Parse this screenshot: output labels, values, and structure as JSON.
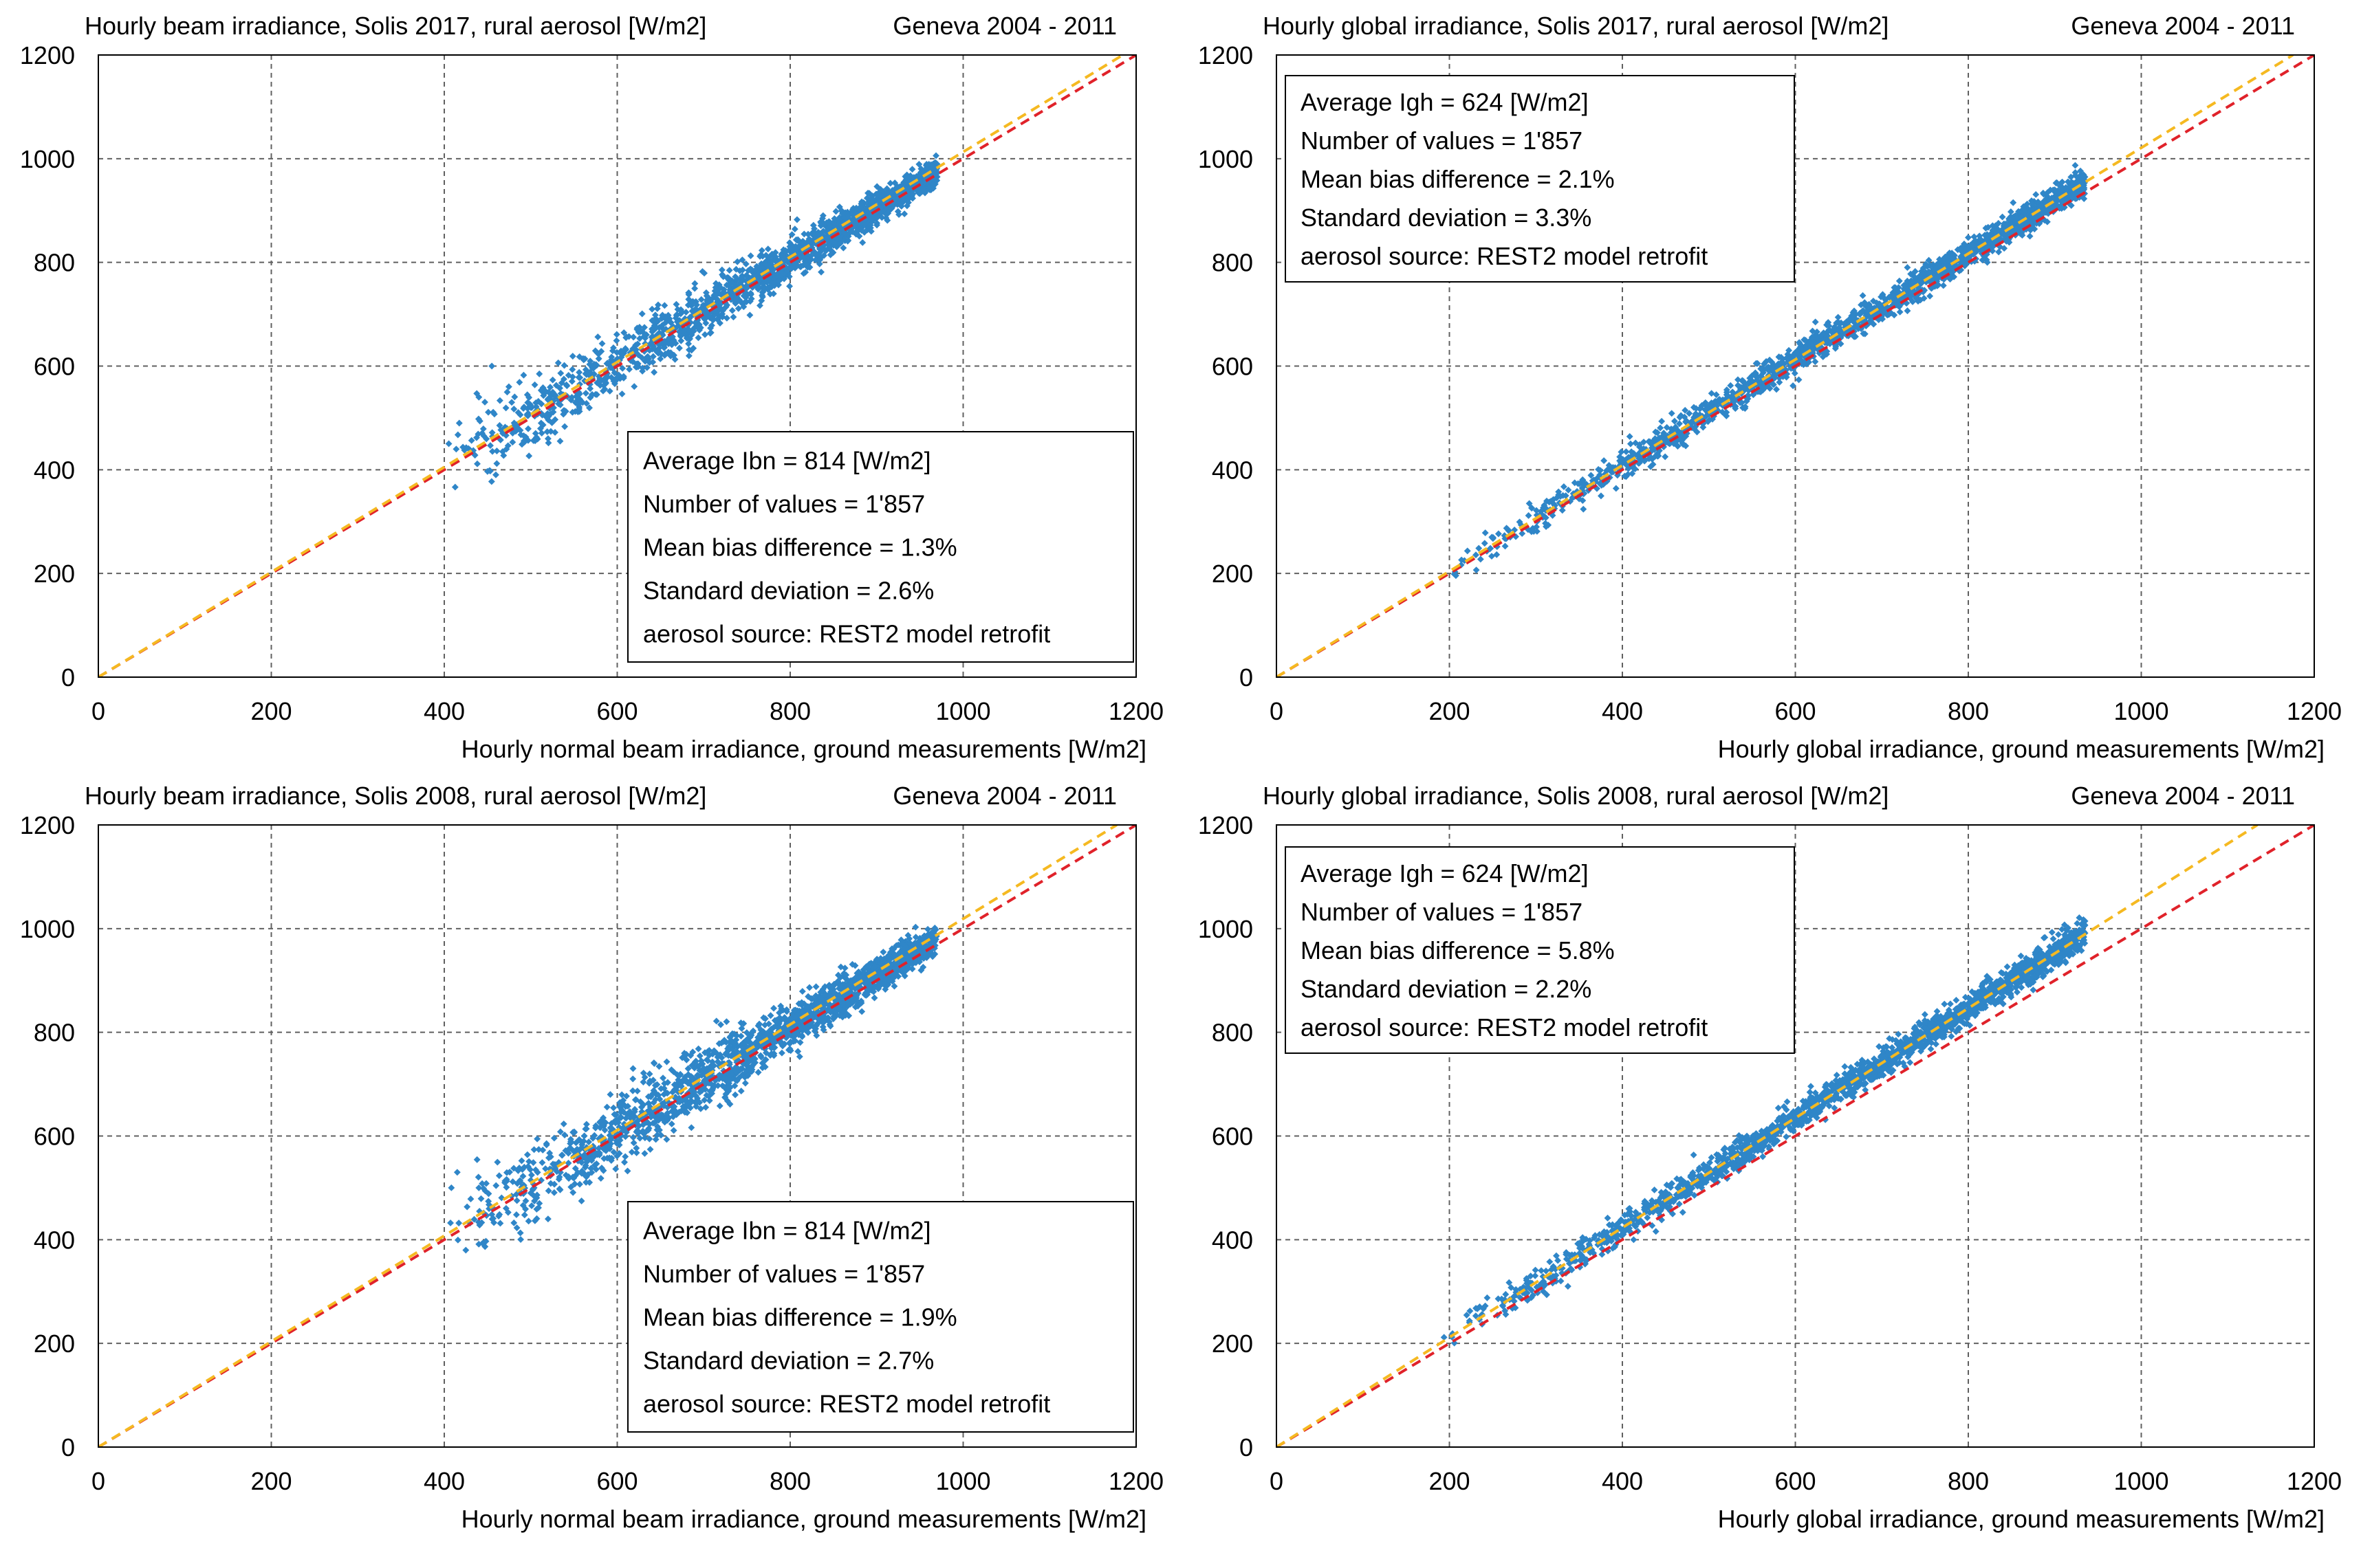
{
  "chart_data": [
    {
      "type": "scatter",
      "title": "Hourly beam irradiance, Solis 2017,  rural aerosol [W/m2]",
      "subtitle": "Geneva 2004 - 2011",
      "xlabel": "Hourly normal beam irradiance,   ground measurements [W/m2]",
      "ylabel": "",
      "xlim": [
        0,
        1200
      ],
      "ylim": [
        0,
        1200
      ],
      "xticks": [
        "0",
        "200",
        "400",
        "600",
        "800",
        "1000",
        "1200"
      ],
      "yticks": [
        "0",
        "200",
        "400",
        "600",
        "800",
        "1000",
        "1200"
      ],
      "grid": true,
      "legend_position": "bottom-right",
      "stats_lines": [
        "Average Ibn = 814 [W/m2]",
        "Number of values = 1'857",
        "Mean bias difference = 1.3%",
        "Standard deviation = 2.6%",
        "aerosol source: REST2 model retrofit"
      ],
      "reference_lines": [
        {
          "slope": 1.0,
          "color": "#e0222a"
        },
        {
          "slope": 1.013,
          "color": "#f5b921"
        }
      ],
      "cloud": {
        "x_start": 400,
        "x_end": 970,
        "slope": 1.0,
        "bias": 5,
        "spread_low": 40,
        "spread_high": 12
      },
      "series": [
        {
          "color": "#2f86c8",
          "x": [
            440,
            455,
            478,
            500,
            512,
            520
          ],
          "y": [
            540,
            600,
            530,
            520,
            490,
            460
          ]
        }
      ]
    },
    {
      "type": "scatter",
      "title": "Hourly global irradiance, Solis 2017,  rural aerosol [W/m2]",
      "subtitle": "Geneva 2004 - 2011",
      "xlabel": "Hourly global irradiance,   ground measurements [W/m2]",
      "ylabel": "",
      "xlim": [
        0,
        1200
      ],
      "ylim": [
        0,
        1200
      ],
      "xticks": [
        "0",
        "200",
        "400",
        "600",
        "800",
        "1000",
        "1200"
      ],
      "yticks": [
        "0",
        "200",
        "400",
        "600",
        "800",
        "1000",
        "1200"
      ],
      "grid": true,
      "legend_position": "top-left",
      "stats_lines": [
        "Average Igh = 624 [W/m2]",
        "Number of values = 1'857",
        "Mean bias difference = 2.1%",
        "Standard deviation = 3.3%",
        "aerosol source: REST2 model retrofit"
      ],
      "reference_lines": [
        {
          "slope": 1.0,
          "color": "#e0222a"
        },
        {
          "slope": 1.021,
          "color": "#f5b921"
        }
      ],
      "cloud": {
        "x_start": 185,
        "x_end": 935,
        "slope": 1.021,
        "bias": 0,
        "spread_low": 14,
        "spread_high": 14
      },
      "series": [
        {
          "color": "#2f86c8",
          "x": [],
          "y": []
        }
      ]
    },
    {
      "type": "scatter",
      "title": "Hourly beam irradiance, Solis 2008,  rural aerosol [W/m2]",
      "subtitle": "Geneva 2004 - 2011",
      "xlabel": "Hourly normal beam irradiance,   ground measurements [W/m2]",
      "ylabel": "",
      "xlim": [
        0,
        1200
      ],
      "ylim": [
        0,
        1200
      ],
      "xticks": [
        "0",
        "200",
        "400",
        "600",
        "800",
        "1000",
        "1200"
      ],
      "yticks": [
        "0",
        "200",
        "400",
        "600",
        "800",
        "1000",
        "1200"
      ],
      "grid": true,
      "legend_position": "bottom-right",
      "stats_lines": [
        "Average Ibn = 814 [W/m2]",
        "Number of values = 1'857",
        "Mean bias difference = 1.9%",
        "Standard deviation = 2.7%",
        "aerosol source: REST2 model retrofit"
      ],
      "reference_lines": [
        {
          "slope": 1.0,
          "color": "#e0222a"
        },
        {
          "slope": 1.019,
          "color": "#f5b921"
        }
      ],
      "cloud": {
        "x_start": 400,
        "x_end": 970,
        "slope": 1.0,
        "bias": 10,
        "spread_low": 45,
        "spread_high": 14
      },
      "series": [
        {
          "color": "#2f86c8",
          "x": [
            415,
            440,
            470,
            500,
            510,
            520
          ],
          "y": [
            530,
            500,
            510,
            490,
            470,
            440
          ]
        }
      ]
    },
    {
      "type": "scatter",
      "title": "Hourly global irradiance, Solis 2008,  rural aerosol [W/m2]",
      "subtitle": "Geneva 2004 - 2011",
      "xlabel": "Hourly global irradiance,   ground measurements [W/m2]",
      "ylabel": "",
      "xlim": [
        0,
        1200
      ],
      "ylim": [
        0,
        1200
      ],
      "xticks": [
        "0",
        "200",
        "400",
        "600",
        "800",
        "1000",
        "1200"
      ],
      "yticks": [
        "0",
        "200",
        "400",
        "600",
        "800",
        "1000",
        "1200"
      ],
      "grid": true,
      "legend_position": "top-left",
      "stats_lines": [
        "Average Igh = 624 [W/m2]",
        "Number of values = 1'857",
        "Mean bias difference = 5.8%",
        "Standard deviation = 2.2%",
        "aerosol source: REST2 model retrofit"
      ],
      "reference_lines": [
        {
          "slope": 1.0,
          "color": "#e0222a"
        },
        {
          "slope": 1.058,
          "color": "#f5b921"
        }
      ],
      "cloud": {
        "x_start": 185,
        "x_end": 935,
        "slope": 1.058,
        "bias": 0,
        "spread_low": 14,
        "spread_high": 14
      },
      "series": [
        {
          "color": "#2f86c8",
          "x": [],
          "y": []
        }
      ]
    }
  ]
}
